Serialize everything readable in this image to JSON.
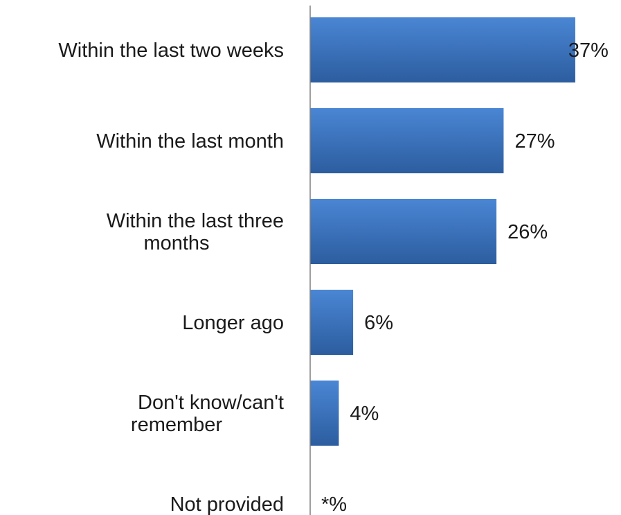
{
  "chart_data": {
    "type": "bar",
    "orientation": "horizontal",
    "categories": [
      [
        "Within the last two weeks"
      ],
      [
        "Within the last month"
      ],
      [
        "Within the last three",
        "months"
      ],
      [
        "Longer ago"
      ],
      [
        "Don't know/can't",
        "remember"
      ],
      [
        "Not provided"
      ]
    ],
    "values": [
      37,
      27,
      26,
      6,
      4,
      0
    ],
    "data_labels": [
      "37%",
      "27%",
      "26%",
      "6%",
      "4%",
      "*%"
    ],
    "title": "",
    "xlabel": "",
    "ylabel": "",
    "xlim": [
      0,
      40
    ],
    "grid": false,
    "legend": "none",
    "bar_color_top": "#4a86d4",
    "bar_color_bottom": "#2c5d9f",
    "axis_color": "#7f7f7f",
    "text_color": "#1a1a1a"
  }
}
